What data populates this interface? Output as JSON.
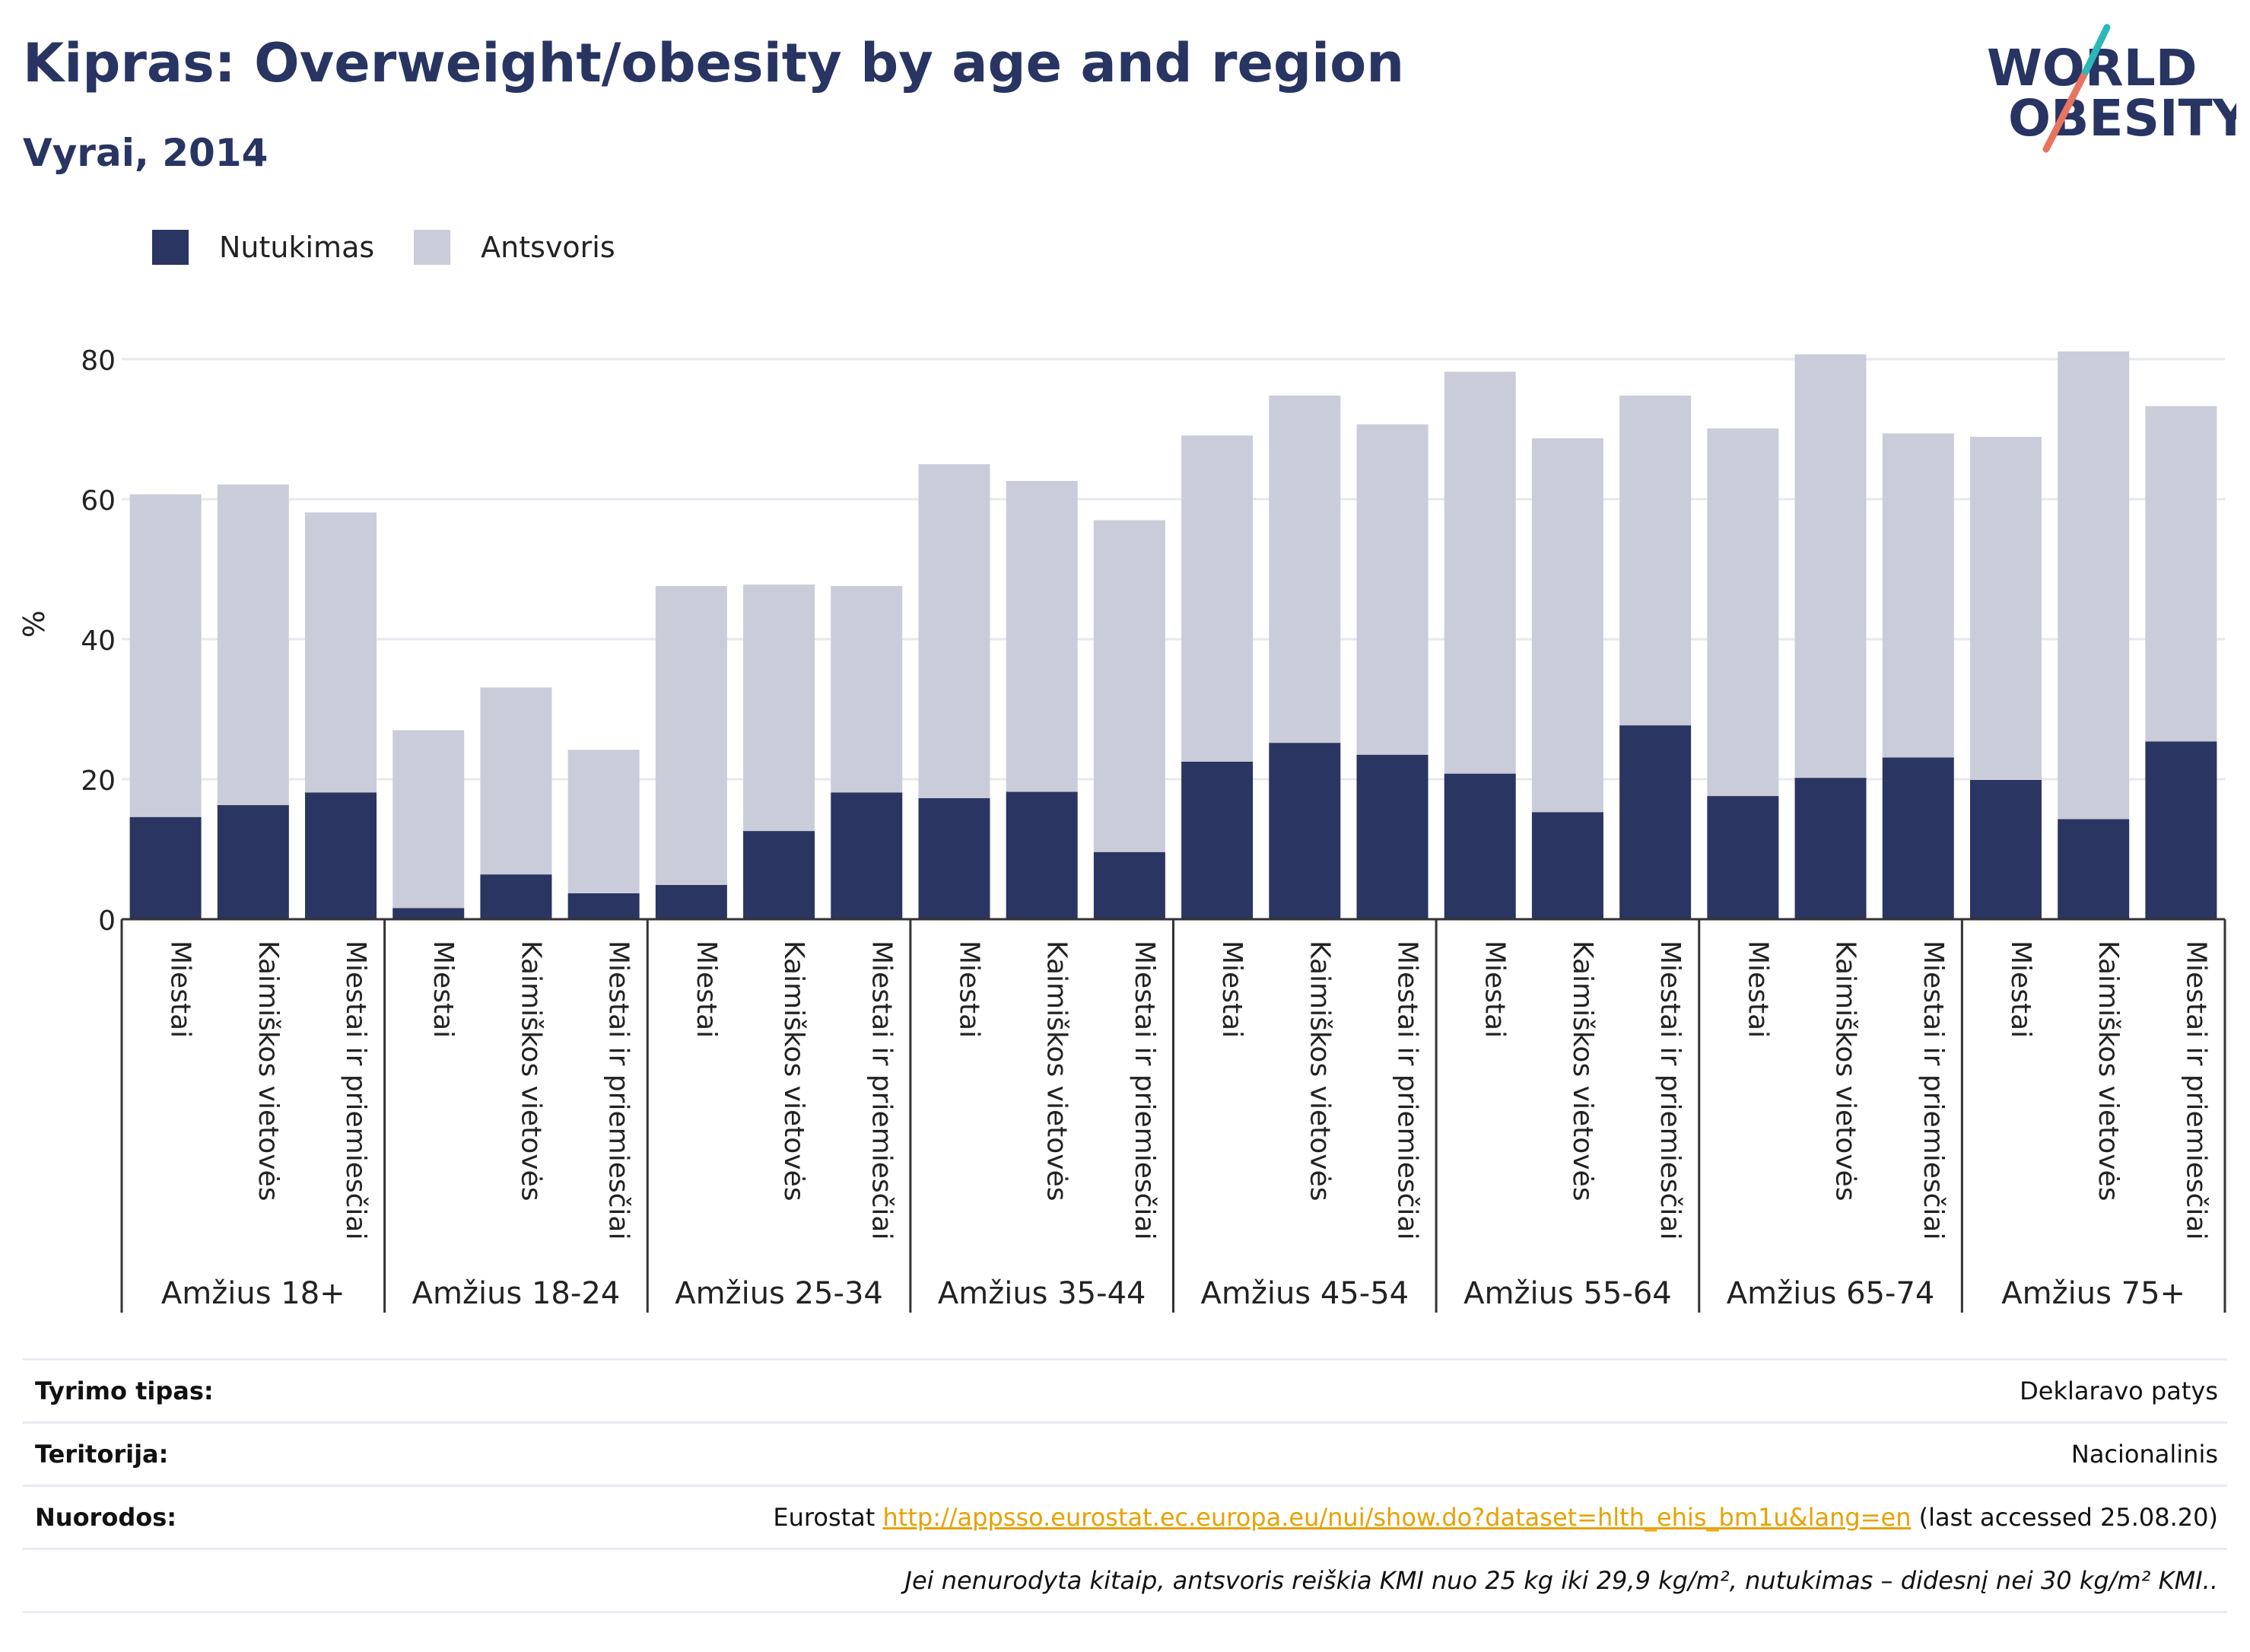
{
  "header": {
    "title": "Kipras: Overweight/obesity by age and region",
    "subtitle": "Vyrai, 2014"
  },
  "logo": {
    "line1": "WORLD",
    "line2": "OBESITY"
  },
  "legend": [
    {
      "label": "Nutukimas",
      "color": "#2a3562"
    },
    {
      "label": "Antsvoris",
      "color": "#cacdd9"
    }
  ],
  "chart_data": {
    "type": "bar",
    "stacked": true,
    "ylabel": "%",
    "ylim": [
      0,
      90
    ],
    "yticks": [
      0,
      20,
      40,
      60,
      80
    ],
    "grid": true,
    "legend_position": "top-left",
    "groups": [
      "Amžius 18+",
      "Amžius 18-24",
      "Amžius 25-34",
      "Amžius 35-44",
      "Amžius 45-54",
      "Amžius 55-64",
      "Amžius 65-74",
      "Amžius 75+"
    ],
    "subcategories": [
      "Miestai",
      "Kaimiškos vietovės",
      "Miestai ir priemiesčiai"
    ],
    "series": [
      {
        "name": "Nutukimas",
        "color": "#2a3562",
        "values": [
          14.6,
          16.3,
          18.1,
          1.6,
          6.4,
          3.7,
          4.9,
          12.6,
          18.1,
          17.3,
          18.2,
          9.6,
          22.5,
          25.2,
          23.5,
          20.8,
          15.3,
          27.7,
          17.6,
          20.2,
          23.1,
          19.9,
          14.3,
          25.4
        ]
      },
      {
        "name": "Antsvoris",
        "color": "#cacdd9",
        "values": [
          46.1,
          45.8,
          40.0,
          25.4,
          26.7,
          20.5,
          42.7,
          35.2,
          29.5,
          47.7,
          44.4,
          47.4,
          46.6,
          49.6,
          47.2,
          57.4,
          53.4,
          47.1,
          52.5,
          60.5,
          46.3,
          49.0,
          66.8,
          47.9
        ]
      }
    ]
  },
  "info": [
    {
      "label": "Tyrimo tipas:",
      "value": "Deklaravo patys"
    },
    {
      "label": "Teritorija:",
      "value": "Nacionalinis"
    },
    {
      "label": "Nuorodos:",
      "prefix": "Eurostat",
      "link": "http://appsso.eurostat.ec.europa.eu/nui/show.do?dataset=hlth_ehis_bm1u&lang=en",
      "suffix": "(last accessed 25.08.20)"
    }
  ],
  "footnote": "Jei nenurodyta kitaip, antsvoris reiškia KMI nuo 25 kg iki 29,9 kg/m², nutukimas – didesnį nei 30 kg/m² KMI.."
}
